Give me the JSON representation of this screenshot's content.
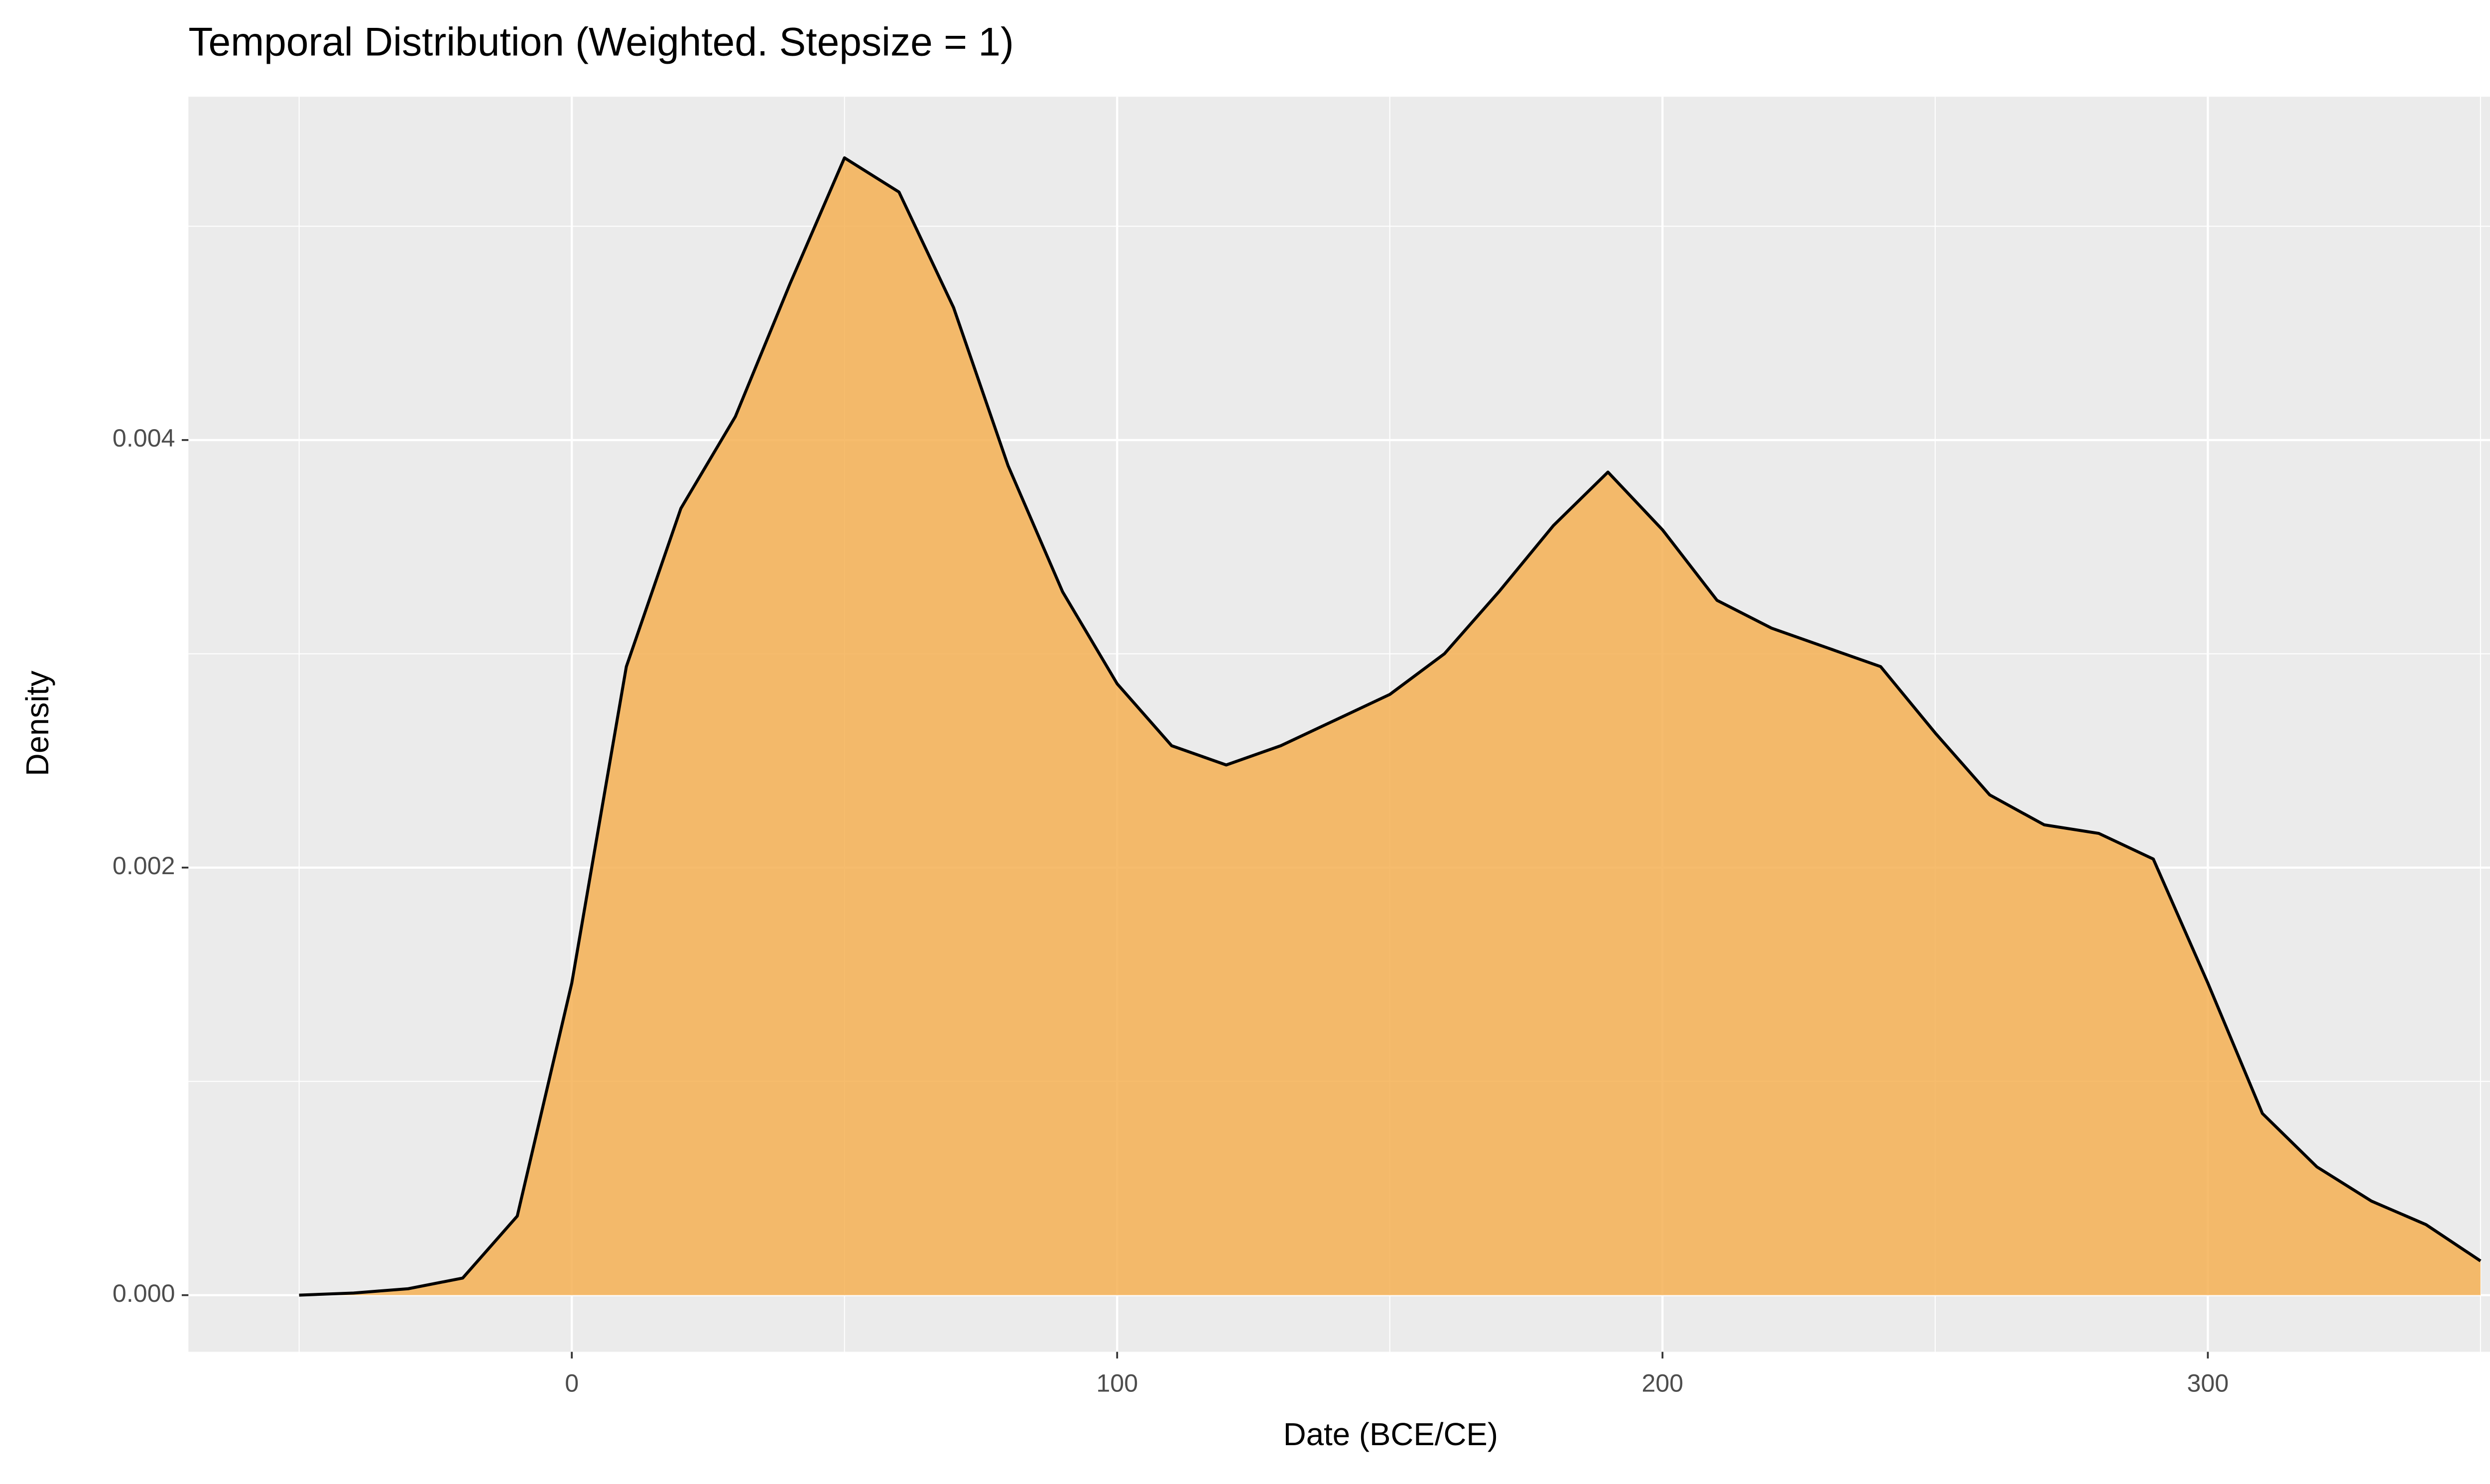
{
  "chart_data": {
    "type": "area",
    "title": "Temporal Distribution (Weighted. Stepsize = 1)",
    "x_label": "Date (BCE/CE)",
    "y_label": "Density",
    "x": [
      -50,
      -40,
      -30,
      -20,
      -10,
      0,
      10,
      20,
      30,
      40,
      50,
      60,
      70,
      80,
      90,
      100,
      110,
      120,
      130,
      140,
      150,
      160,
      170,
      180,
      190,
      200,
      210,
      220,
      230,
      240,
      250,
      260,
      270,
      280,
      290,
      300,
      310,
      320,
      330,
      340,
      350
    ],
    "series": [
      {
        "color": "#f5b054",
        "line_color": "#000000",
        "values": [
          0.0,
          1e-05,
          3e-05,
          8e-05,
          0.00037,
          0.00146,
          0.00294,
          0.00368,
          0.00411,
          0.00473,
          0.00532,
          0.00516,
          0.00462,
          0.00388,
          0.00329,
          0.00286,
          0.00257,
          0.00248,
          0.00257,
          0.00269,
          0.00281,
          0.003,
          0.00329,
          0.0036,
          0.00385,
          0.00358,
          0.00325,
          0.00312,
          0.00303,
          0.00294,
          0.00263,
          0.00234,
          0.0022,
          0.00216,
          0.00204,
          0.00146,
          0.00085,
          0.0006,
          0.00044,
          0.00033,
          0.00016
        ]
      }
    ],
    "xlim": [
      -70.3,
      370.9
    ],
    "ylim": [
      -0.000265,
      0.005606
    ],
    "xticks": [
      0,
      100,
      200,
      300
    ],
    "yticks": [
      {
        "value": 0,
        "label": "0.000"
      },
      {
        "value": 0.002,
        "label": "0.002"
      },
      {
        "value": 0.004,
        "label": "0.004"
      }
    ],
    "grid": true
  }
}
